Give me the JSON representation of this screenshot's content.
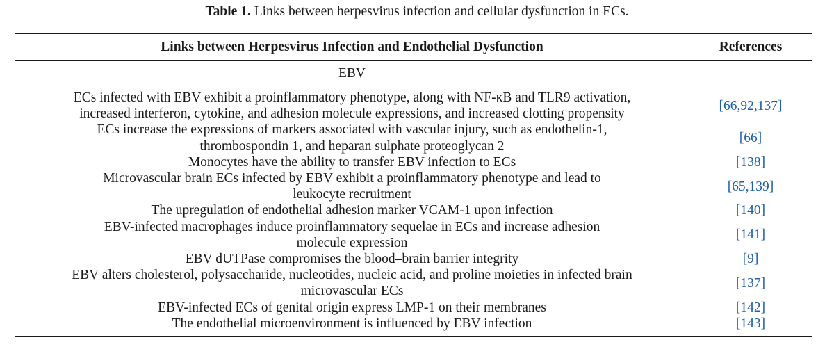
{
  "caption": {
    "label": "Table 1.",
    "text": " Links between herpesvirus infection and cellular dysfunction in ECs."
  },
  "table": {
    "headers": [
      "Links between Herpesvirus Infection and Endothelial Dysfunction",
      "References"
    ],
    "section": "EBV",
    "rows": [
      {
        "lines": [
          "ECs infected with EBV exhibit a proinflammatory phenotype, along with NF-κB and TLR9 activation,",
          "increased interferon, cytokine, and adhesion molecule expressions, and increased clotting propensity"
        ],
        "refs": "[66,92,137]"
      },
      {
        "lines": [
          "ECs increase the expressions of markers associated with vascular injury, such as endothelin-1,",
          "thrombospondin 1, and heparan sulphate proteoglycan 2"
        ],
        "refs": "[66]"
      },
      {
        "lines": [
          "Monocytes have the ability to transfer EBV infection to ECs"
        ],
        "refs": "[138]"
      },
      {
        "lines": [
          "Microvascular brain ECs infected by EBV exhibit a proinflammatory phenotype and lead to",
          "leukocyte recruitment"
        ],
        "refs": "[65,139]"
      },
      {
        "lines": [
          "The upregulation of endothelial adhesion marker VCAM-1 upon infection"
        ],
        "refs": "[140]"
      },
      {
        "lines": [
          "EBV-infected macrophages induce proinflammatory sequelae in ECs and increase adhesion",
          "molecule expression"
        ],
        "refs": "[141]"
      },
      {
        "lines": [
          "EBV dUTPase compromises the blood–brain barrier integrity"
        ],
        "refs": "[9]"
      },
      {
        "lines": [
          "EBV alters cholesterol, polysaccharide, nucleotides, nucleic acid, and proline moieties in infected brain",
          "microvascular ECs"
        ],
        "refs": "[137]"
      },
      {
        "lines": [
          "EBV-infected ECs of genital origin express LMP-1 on their membranes"
        ],
        "refs": "[142]"
      },
      {
        "lines": [
          "The endothelial microenvironment is influenced by EBV infection"
        ],
        "refs": "[143]"
      }
    ]
  }
}
